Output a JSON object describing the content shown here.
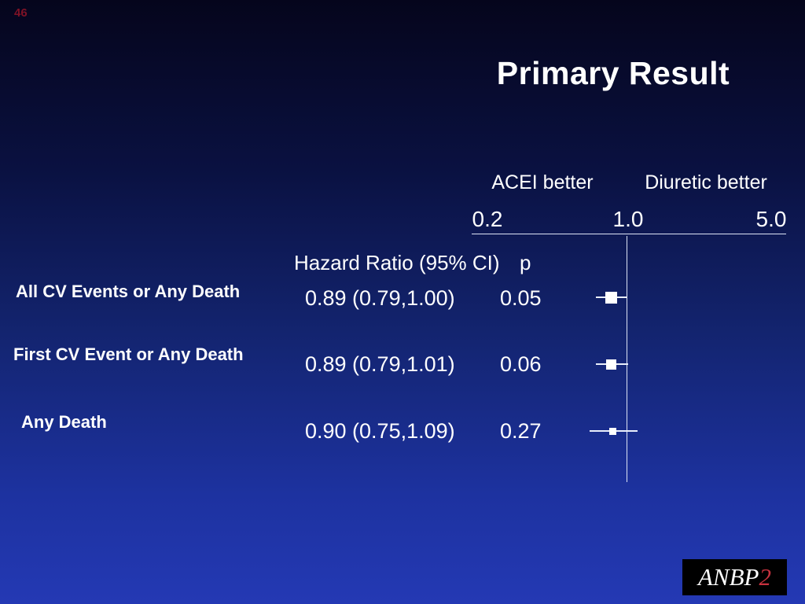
{
  "slide": {
    "number": "46",
    "title": "Primary Result"
  },
  "chart_data": {
    "type": "scatter",
    "subtype": "forest-plot",
    "title": "Primary Result",
    "axis": {
      "scale": "log",
      "ticks": [
        0.2,
        1.0,
        5.0
      ],
      "tick_labels": [
        "0.2",
        "1.0",
        "5.0"
      ],
      "xlim": [
        0.2,
        5.0
      ],
      "reference_line": 1.0,
      "left_region_label": "ACEI better",
      "right_region_label": "Diuretic better",
      "grid": false
    },
    "columns": {
      "hazard_ratio": "Hazard Ratio (95% CI)",
      "p": "p"
    },
    "rows": [
      {
        "label": "All CV Events or Any Death",
        "hr": 0.89,
        "ci_low": 0.79,
        "ci_high": 1.0,
        "hr_text": "0.89 (0.79,1.00)",
        "p_text": "0.05"
      },
      {
        "label": "First CV Event or Any Death",
        "hr": 0.89,
        "ci_low": 0.79,
        "ci_high": 1.01,
        "hr_text": "0.89 (0.79,1.01)",
        "p_text": "0.06"
      },
      {
        "label": "Any Death",
        "hr": 0.9,
        "ci_low": 0.75,
        "ci_high": 1.09,
        "hr_text": "0.90 (0.75,1.09)",
        "p_text": "0.27"
      }
    ]
  },
  "logo": {
    "text_white": "ANBP",
    "text_red": "2"
  },
  "colors": {
    "background_top": "#05051c",
    "background_bottom": "#2439b4",
    "text": "#ffffff",
    "slide_number": "#7e1226",
    "logo_background": "#000000",
    "logo_accent_red": "#c7323f",
    "plot_lines": "#dde4f5"
  }
}
